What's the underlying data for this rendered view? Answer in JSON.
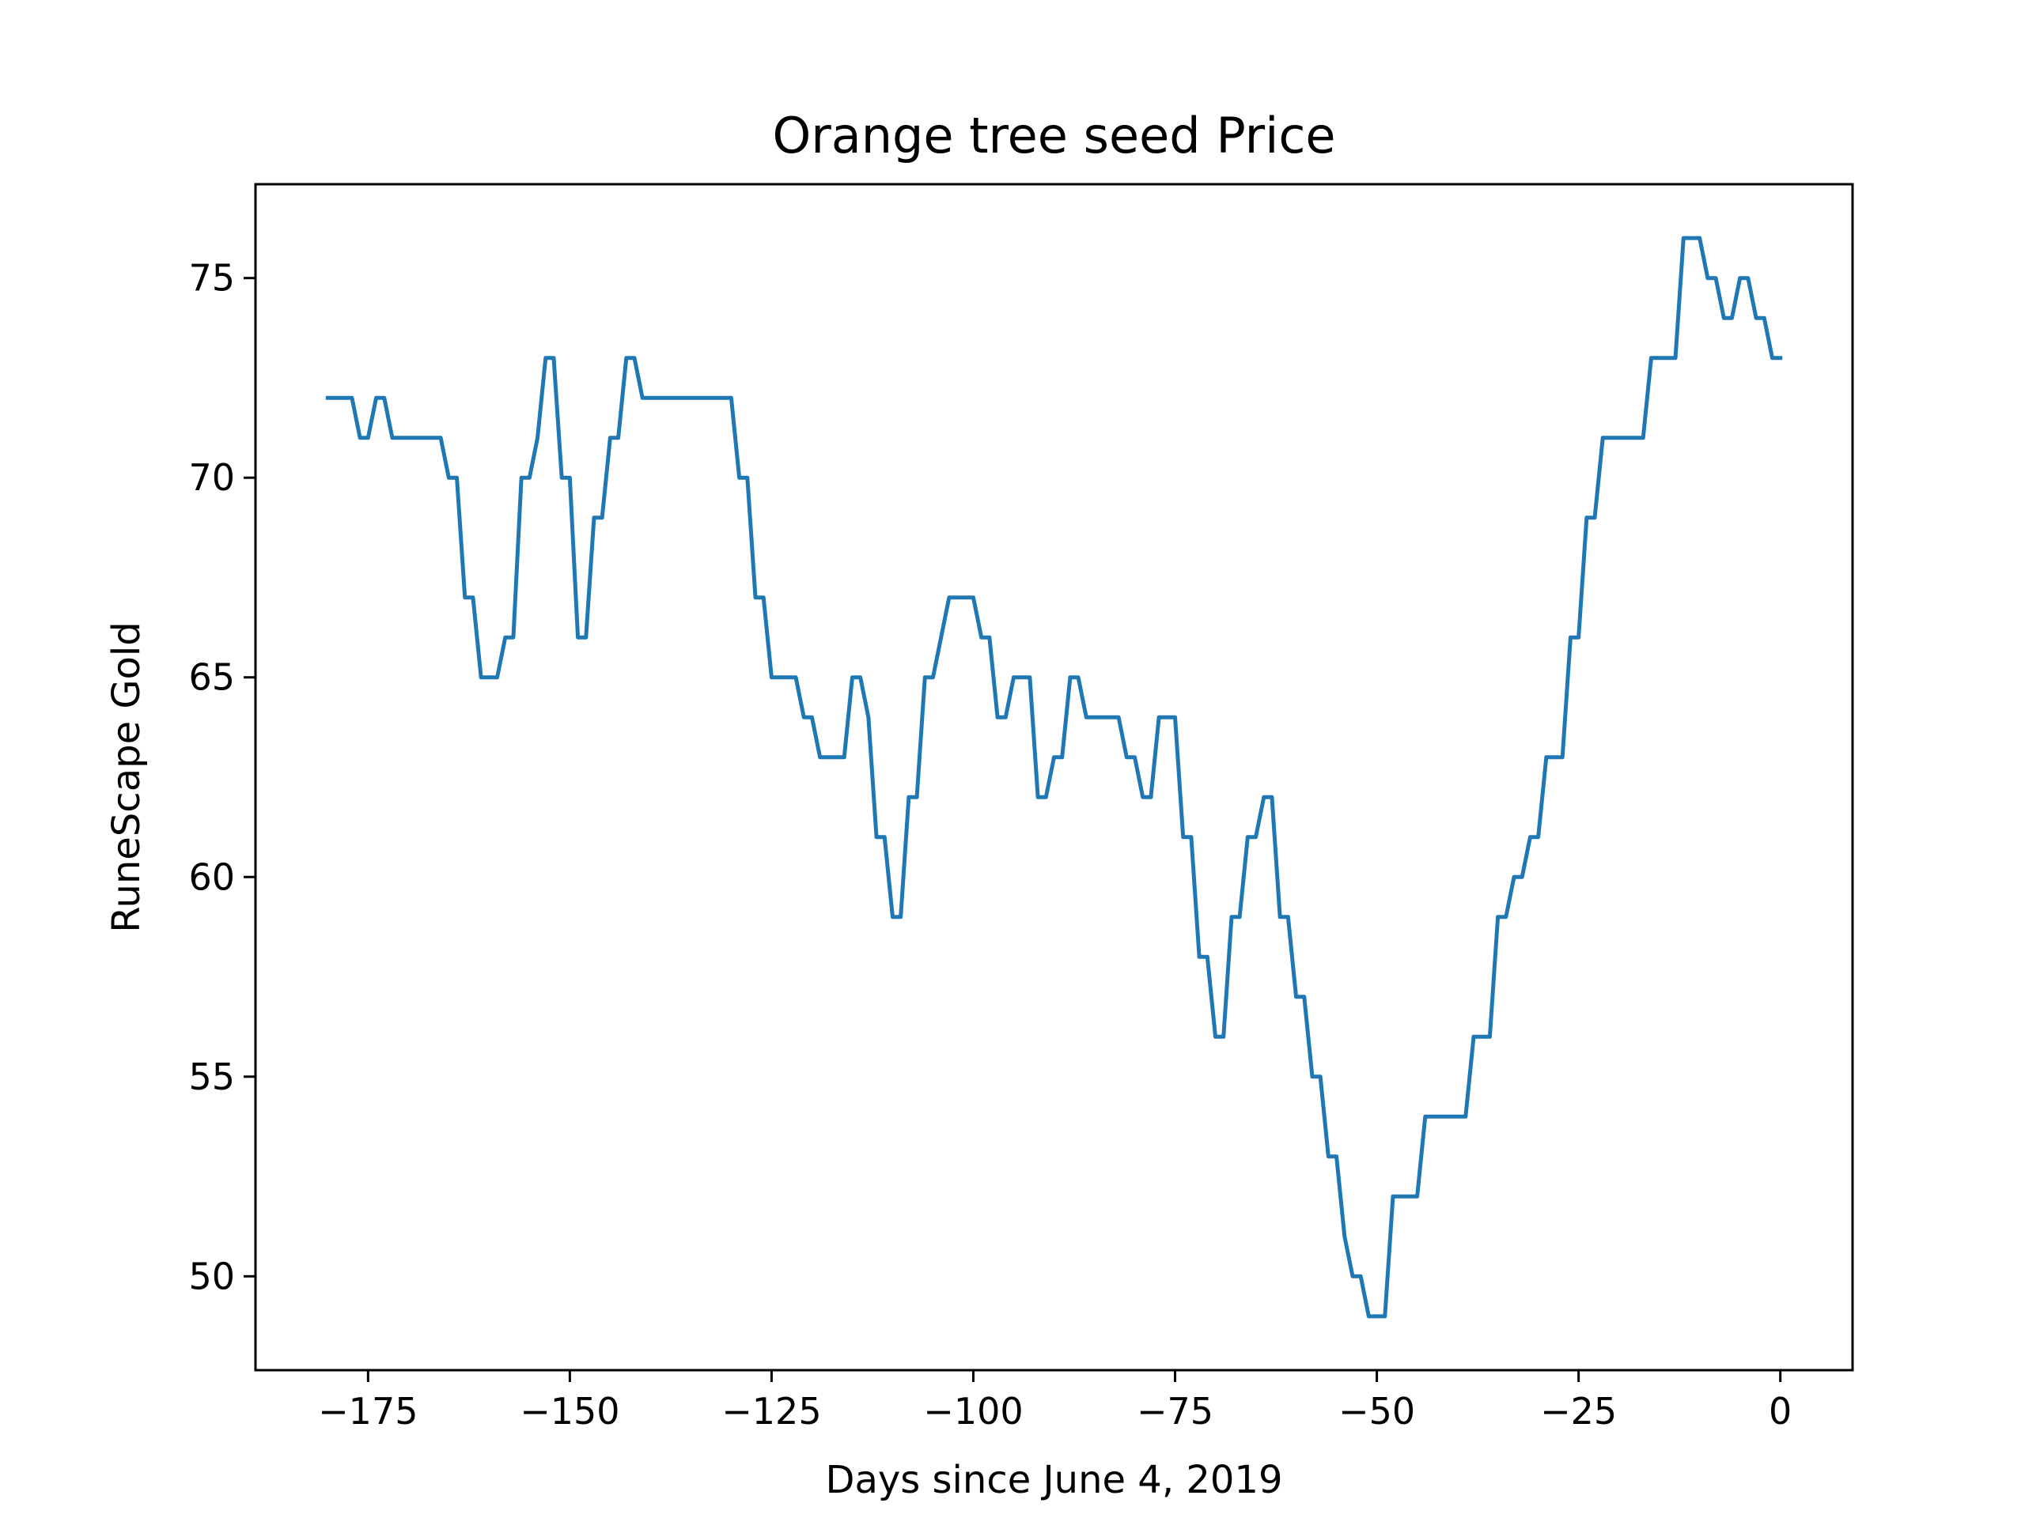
{
  "chart_data": {
    "type": "line",
    "title": "Orange tree seed Price",
    "xlabel": "Days since June 4, 2019",
    "ylabel": "RuneScape Gold",
    "xlim": [
      -188.95,
      8.95
    ],
    "ylim": [
      47.65,
      77.35
    ],
    "x_ticks": [
      -175,
      -150,
      -125,
      -100,
      -75,
      -50,
      -25,
      0
    ],
    "x_tick_labels": [
      "−175",
      "−150",
      "−125",
      "−100",
      "−75",
      "−50",
      "−25",
      "0"
    ],
    "y_ticks": [
      50,
      55,
      60,
      65,
      70,
      75
    ],
    "y_tick_labels": [
      "50",
      "55",
      "60",
      "65",
      "70",
      "75"
    ],
    "grid": false,
    "line_color": "#1f77b4",
    "series": [
      {
        "x": [
          -180,
          -179,
          -178,
          -177,
          -176,
          -175,
          -174,
          -173,
          -172,
          -171,
          -170,
          -169,
          -168,
          -167,
          -166,
          -165,
          -164,
          -163,
          -162,
          -161,
          -160,
          -159,
          -158,
          -157,
          -156,
          -155,
          -154,
          -153,
          -152,
          -151,
          -150,
          -149,
          -148,
          -147,
          -146,
          -145,
          -144,
          -143,
          -142,
          -141,
          -140,
          -139,
          -138,
          -137,
          -136,
          -135,
          -134,
          -133,
          -132,
          -131,
          -130,
          -129,
          -128,
          -127,
          -126,
          -125,
          -124,
          -123,
          -122,
          -121,
          -120,
          -119,
          -118,
          -117,
          -116,
          -115,
          -114,
          -113,
          -112,
          -111,
          -110,
          -109,
          -108,
          -107,
          -106,
          -105,
          -104,
          -103,
          -102,
          -101,
          -100,
          -99,
          -98,
          -97,
          -96,
          -95,
          -94,
          -93,
          -92,
          -91,
          -90,
          -89,
          -88,
          -87,
          -86,
          -85,
          -84,
          -83,
          -82,
          -81,
          -80,
          -79,
          -78,
          -77,
          -76,
          -75,
          -74,
          -73,
          -72,
          -71,
          -70,
          -69,
          -68,
          -67,
          -66,
          -65,
          -64,
          -63,
          -62,
          -61,
          -60,
          -59,
          -58,
          -57,
          -56,
          -55,
          -54,
          -53,
          -52,
          -51,
          -50,
          -49,
          -48,
          -47,
          -46,
          -45,
          -44,
          -43,
          -42,
          -41,
          -40,
          -39,
          -38,
          -37,
          -36,
          -35,
          -34,
          -33,
          -32,
          -31,
          -30,
          -29,
          -28,
          -27,
          -26,
          -25,
          -24,
          -23,
          -22,
          -21,
          -20,
          -19,
          -18,
          -17,
          -16,
          -15,
          -14,
          -13,
          -12,
          -11,
          -10,
          -9,
          -8,
          -7,
          -6,
          -5,
          -4,
          -3,
          -2,
          -1,
          0
        ],
        "y": [
          72,
          72,
          72,
          72,
          71,
          71,
          72,
          72,
          71,
          71,
          71,
          71,
          71,
          71,
          71,
          70,
          70,
          67,
          67,
          65,
          65,
          65,
          66,
          66,
          70,
          70,
          71,
          73,
          73,
          70,
          70,
          66,
          66,
          69,
          69,
          71,
          71,
          73,
          73,
          72,
          72,
          72,
          72,
          72,
          72,
          72,
          72,
          72,
          72,
          72,
          72,
          70,
          70,
          67,
          67,
          65,
          65,
          65,
          65,
          64,
          64,
          63,
          63,
          63,
          63,
          65,
          65,
          64,
          61,
          61,
          59,
          59,
          62,
          62,
          65,
          65,
          66,
          67,
          67,
          67,
          67,
          66,
          66,
          64,
          64,
          65,
          65,
          65,
          62,
          62,
          63,
          63,
          65,
          65,
          64,
          64,
          64,
          64,
          64,
          63,
          63,
          62,
          62,
          64,
          64,
          64,
          61,
          61,
          58,
          58,
          56,
          56,
          59,
          59,
          61,
          61,
          62,
          62,
          59,
          59,
          57,
          57,
          55,
          55,
          53,
          53,
          51,
          50,
          50,
          49,
          49,
          49,
          52,
          52,
          52,
          52,
          54,
          54,
          54,
          54,
          54,
          54,
          56,
          56,
          56,
          59,
          59,
          60,
          60,
          61,
          61,
          63,
          63,
          63,
          66,
          66,
          69,
          69,
          71,
          71,
          71,
          71,
          71,
          71,
          73,
          73,
          73,
          73,
          76,
          76,
          76,
          75,
          75,
          74,
          74,
          75,
          75,
          74,
          74,
          73,
          73
        ]
      }
    ]
  }
}
